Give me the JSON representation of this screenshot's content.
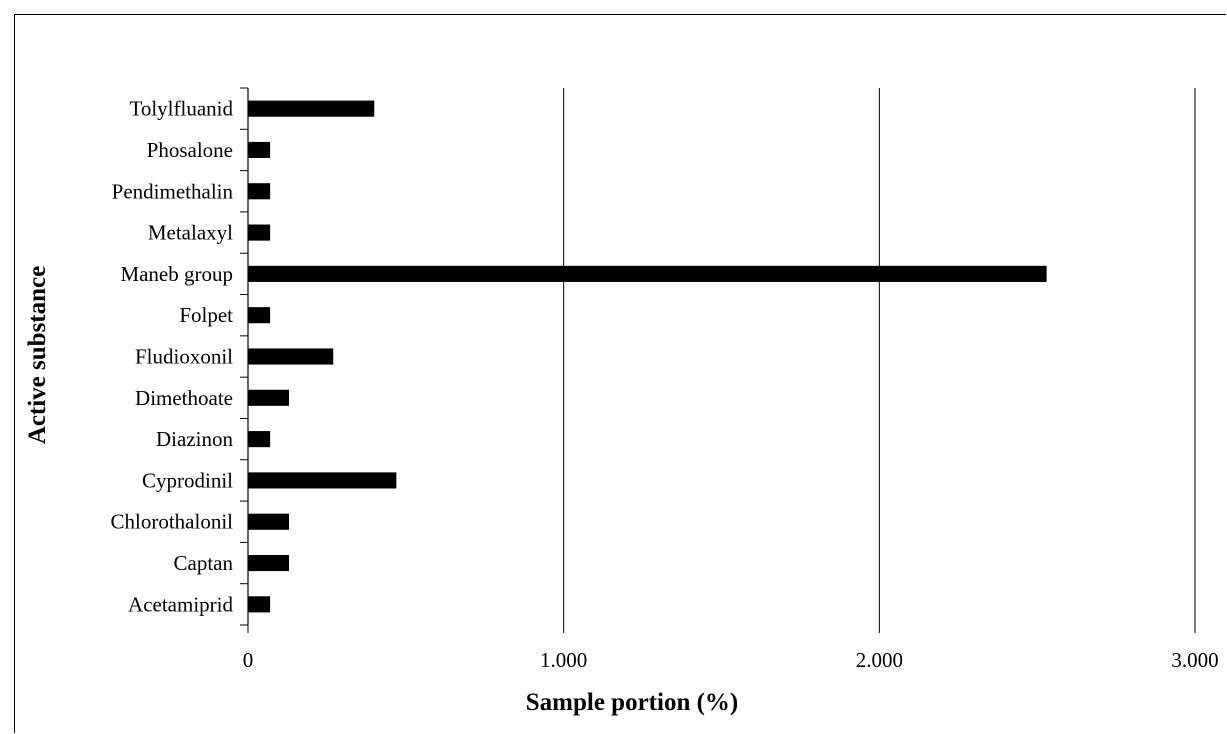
{
  "chart_data": {
    "type": "bar",
    "orientation": "horizontal",
    "categories": [
      "Tolylfluanid",
      "Phosalone",
      "Pendimethalin",
      "Metalaxyl",
      "Maneb group",
      "Folpet",
      "Fludioxonil",
      "Dimethoate",
      "Diazinon",
      "Cyprodinil",
      "Chlorothalonil",
      "Captan",
      "Acetamiprid"
    ],
    "values": [
      0.4,
      0.07,
      0.07,
      0.07,
      2.53,
      0.07,
      0.27,
      0.13,
      0.07,
      0.47,
      0.13,
      0.13,
      0.07
    ],
    "xlim": [
      0,
      3
    ],
    "xticks": [
      0,
      1,
      2,
      3
    ],
    "xtick_labels": [
      "0",
      "1.000",
      "2.000",
      "3.000"
    ],
    "xlabel": "Sample portion  (%)",
    "ylabel": "Active substance",
    "title": "",
    "grid": "vertical",
    "bar_color": "#000000"
  }
}
